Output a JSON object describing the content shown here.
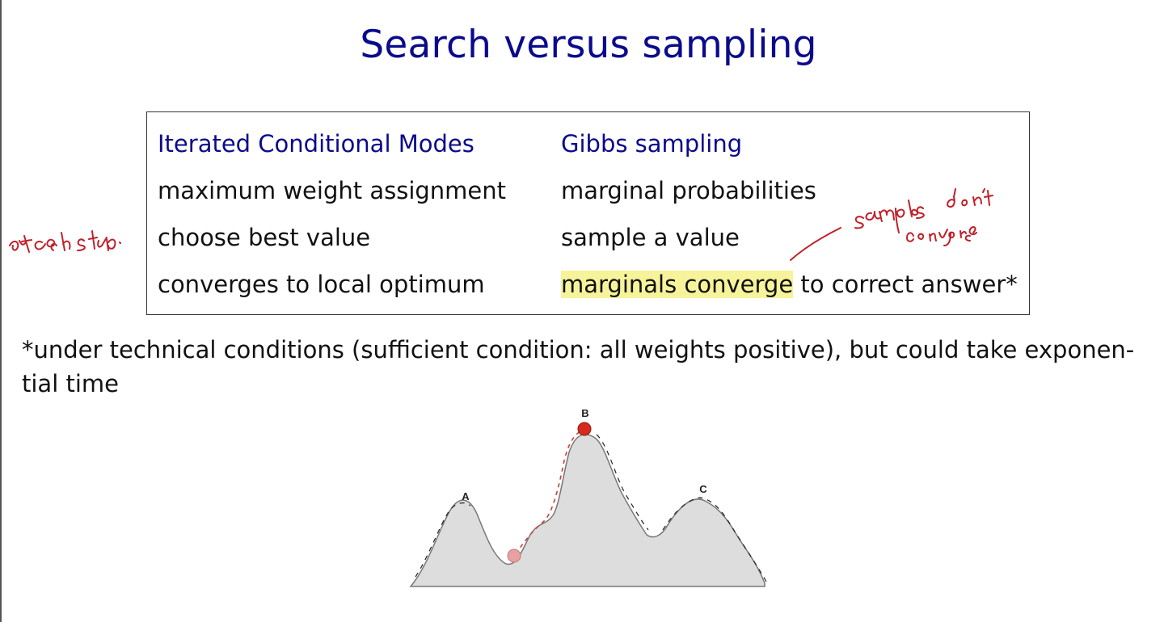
{
  "slide": {
    "title": "Search versus sampling"
  },
  "comparison_table": {
    "headers": [
      "Iterated Conditional Modes",
      "Gibbs sampling"
    ],
    "rows": [
      [
        "maximum weight assignment",
        "marginal probabilities"
      ],
      [
        "choose best value",
        "sample a value"
      ],
      [
        "converges to local optimum",
        {
          "highlighted": "marginals converge",
          "rest": " to correct answer*"
        }
      ]
    ]
  },
  "footnote": {
    "line1": "*under technical conditions (sufficient condition: all weights positive), but could take exponen-",
    "line2": "tial time"
  },
  "figure": {
    "peak_labels": [
      "A",
      "B",
      "C"
    ]
  },
  "colors": {
    "title_blue": "#0a0a8c",
    "ink_red": "#c0202a",
    "highlight_yellow": "#f6f39a",
    "mountain_fill": "#dddddd"
  }
}
